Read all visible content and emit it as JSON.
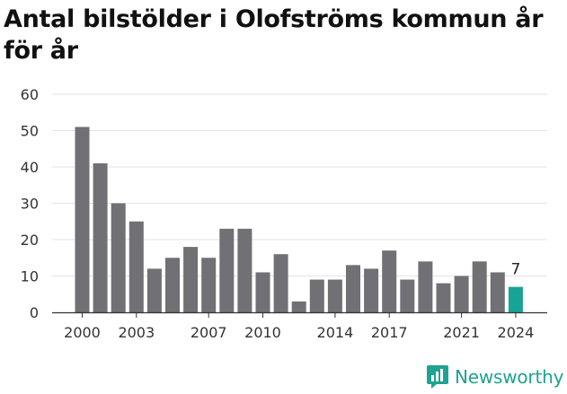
{
  "title": "Antal bilstölder i Olofströms kommun år för år",
  "brand": {
    "name": "Newsworthy",
    "icon": "newsworthy-chart-logo-icon"
  },
  "colors": {
    "bar": "#717075",
    "highlight": "#17a396",
    "grid": "#e3e3e3",
    "axis": "#333333",
    "text": "#333333"
  },
  "chart_data": {
    "type": "bar",
    "x": [
      2000,
      2001,
      2002,
      2003,
      2004,
      2005,
      2006,
      2007,
      2008,
      2009,
      2010,
      2011,
      2012,
      2013,
      2014,
      2015,
      2016,
      2017,
      2018,
      2019,
      2020,
      2021,
      2022,
      2023,
      2024
    ],
    "values": [
      51,
      41,
      30,
      25,
      12,
      15,
      18,
      15,
      23,
      23,
      11,
      16,
      3,
      9,
      9,
      13,
      12,
      17,
      9,
      14,
      8,
      10,
      14,
      11,
      7
    ],
    "x_tick_labels": [
      "2000",
      "2003",
      "2007",
      "2010",
      "2014",
      "2017",
      "2021",
      "2024"
    ],
    "y_ticks": [
      0,
      10,
      20,
      30,
      40,
      50,
      60
    ],
    "ylim": [
      0,
      60
    ],
    "grid": true,
    "highlight": {
      "x": 2024,
      "label": "7"
    },
    "xlabel": "",
    "ylabel": ""
  }
}
